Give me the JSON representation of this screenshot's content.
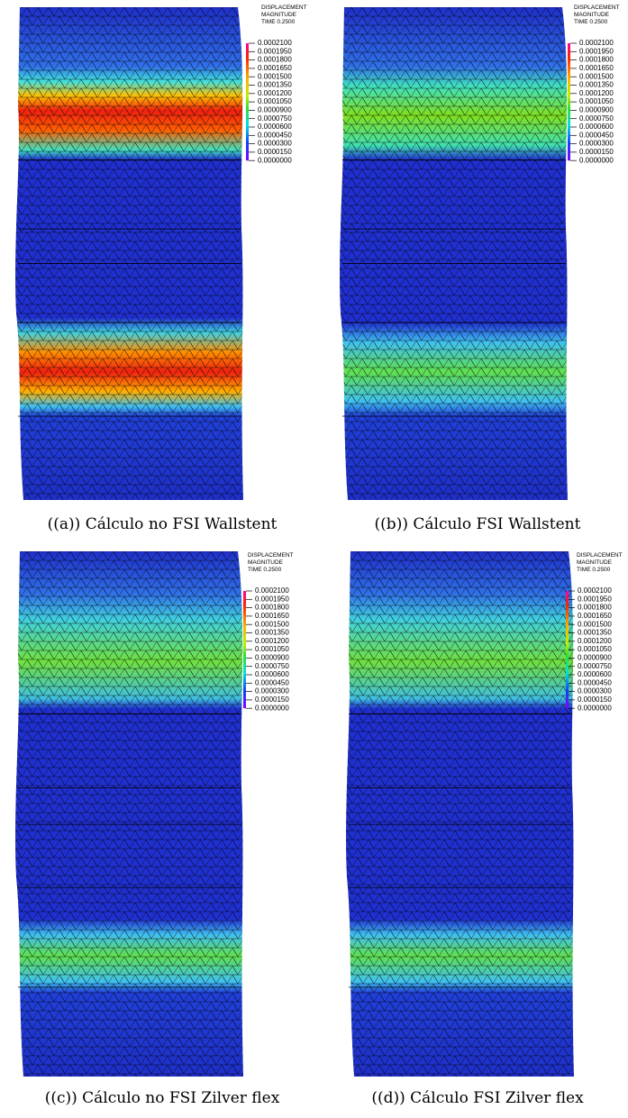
{
  "legend": {
    "title": [
      "DISPLACEMENT",
      "MAGNITUDE",
      "TIME 0.2500"
    ],
    "labels": [
      "0.0002100",
      "0.0001950",
      "0.0001800",
      "0.0001650",
      "0.0001500",
      "0.0001350",
      "0.0001200",
      "0.0001050",
      "0.0000900",
      "0.0000750",
      "0.0000600",
      "0.0000450",
      "0.0000300",
      "0.0000150",
      "0.0000000"
    ]
  },
  "panels": [
    {
      "caption": "((a)) Cálculo no FSI Wallstent"
    },
    {
      "caption": "((b)) Cálculo FSI Wallstent"
    },
    {
      "caption": "((c)) Cálculo no FSI Zilver flex"
    },
    {
      "caption": "((d)) Cálculo FSI Zilver flex"
    }
  ]
}
